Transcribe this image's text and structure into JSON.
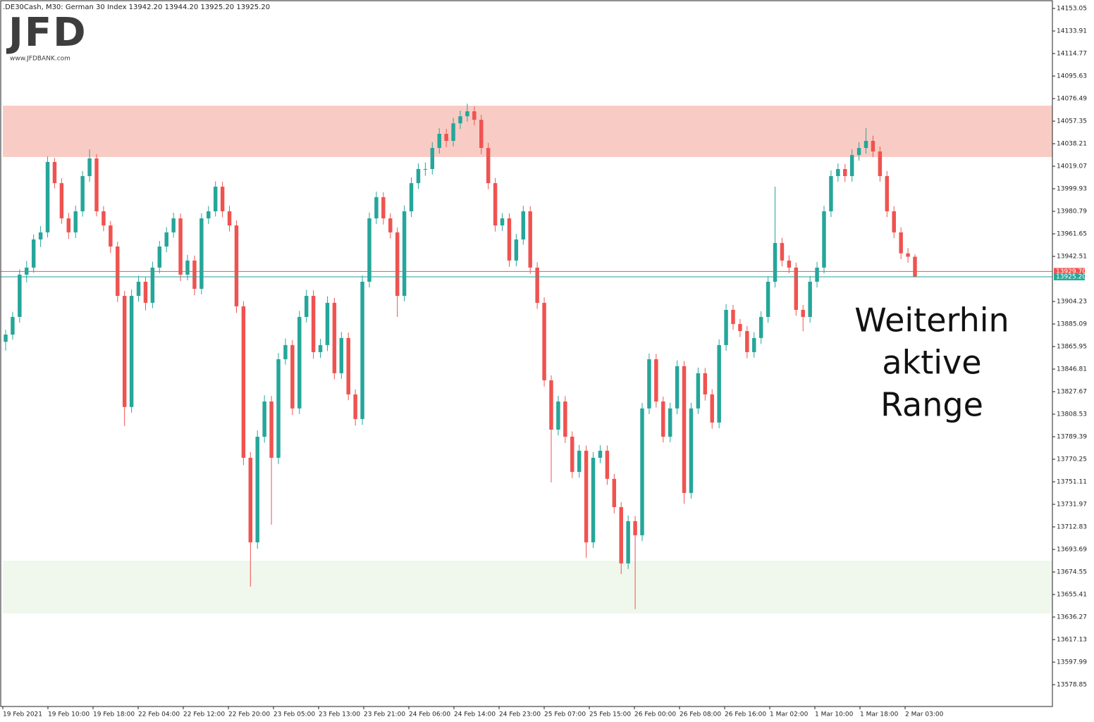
{
  "chart_data": {
    "type": "candlestick",
    "header": ".DE30Cash, M30:  German 30 Index  13942.20 13944.20 13925.20 13925.20",
    "logo": "JFD",
    "logo_url": "www.JFDBANK.com",
    "annotation": [
      "Weiterhin",
      "aktive",
      "Range"
    ],
    "up_color": "#26a69a",
    "down_color": "#ef5350",
    "ylim": [
      13560.3,
      14160.23
    ],
    "yticks": [
      14153.05,
      14133.91,
      14114.77,
      14095.63,
      14076.49,
      14057.35,
      14038.21,
      14019.07,
      13999.93,
      13980.79,
      13961.65,
      13942.51,
      13904.23,
      13885.09,
      13865.95,
      13846.81,
      13827.67,
      13808.53,
      13789.39,
      13770.25,
      13751.11,
      13731.97,
      13712.83,
      13693.69,
      13674.55,
      13655.41,
      13636.27,
      13617.13,
      13597.99,
      13578.85
    ],
    "x_labels": [
      "19 Feb 2021",
      "19 Feb 10:00",
      "19 Feb 18:00",
      "22 Feb 04:00",
      "22 Feb 12:00",
      "22 Feb 20:00",
      "23 Feb 05:00",
      "23 Feb 13:00",
      "23 Feb 21:00",
      "24 Feb 06:00",
      "24 Feb 14:00",
      "24 Feb 23:00",
      "25 Feb 07:00",
      "25 Feb 15:00",
      "26 Feb 00:00",
      "26 Feb 08:00",
      "26 Feb 16:00",
      "1 Mar 02:00",
      "1 Mar 10:00",
      "1 Mar 18:00",
      "2 Mar 03:00"
    ],
    "zones": [
      {
        "from": 14026.9,
        "to": 14070.5,
        "color": "#f8ccc4"
      },
      {
        "from": 13639.3,
        "to": 13684.1,
        "color": "#f0f7ec"
      }
    ],
    "price_lines": [
      {
        "value": 13929.7,
        "label": "13929.70",
        "color": "#ef5350"
      },
      {
        "value": 13925.2,
        "label": "13925.20",
        "color": "#26a69a"
      }
    ],
    "candles": [
      [
        13870.0,
        13880.2,
        13862.5,
        13876.1
      ],
      [
        13876.1,
        13895.4,
        13871.8,
        13891.1
      ],
      [
        13891.1,
        13931.5,
        13886.2,
        13927.0
      ],
      [
        13927.0,
        13938.6,
        13920.4,
        13933.0
      ],
      [
        13933.0,
        13961.2,
        13928.7,
        13956.9
      ],
      [
        13956.9,
        13968.3,
        13950.5,
        13962.9
      ],
      [
        13962.9,
        14027.4,
        13958.6,
        14022.7
      ],
      [
        14022.7,
        14026.1,
        14000.3,
        14004.7
      ],
      [
        14004.7,
        14008.9,
        13970.2,
        13974.8
      ],
      [
        13974.8,
        13979.5,
        13957.4,
        13962.9
      ],
      [
        13962.9,
        13985.6,
        13958.1,
        13980.8
      ],
      [
        13980.8,
        14014.9,
        13976.3,
        14010.7
      ],
      [
        14010.7,
        14033.4,
        14005.8,
        14025.7
      ],
      [
        14025.7,
        14029.3,
        13976.5,
        13980.8
      ],
      [
        13980.8,
        13985.2,
        13963.9,
        13968.8
      ],
      [
        13968.8,
        13972.6,
        13945.3,
        13950.9
      ],
      [
        13950.9,
        13955.0,
        13903.7,
        13909.0
      ],
      [
        13909.0,
        13913.2,
        13798.4,
        13814.6
      ],
      [
        13814.6,
        13914.3,
        13809.9,
        13909.0
      ],
      [
        13909.0,
        13926.1,
        13904.2,
        13921.0
      ],
      [
        13921.0,
        13925.4,
        13896.7,
        13903.1
      ],
      [
        13903.1,
        13938.1,
        13898.5,
        13933.0
      ],
      [
        13933.0,
        13955.7,
        13928.2,
        13950.9
      ],
      [
        13950.9,
        13967.3,
        13946.0,
        13962.9
      ],
      [
        13962.9,
        13979.6,
        13958.4,
        13974.8
      ],
      [
        13974.8,
        13978.9,
        13921.6,
        13927.0
      ],
      [
        13927.0,
        13943.8,
        13922.1,
        13939.0
      ],
      [
        13939.0,
        13943.2,
        13909.4,
        13915.0
      ],
      [
        13915.0,
        13979.1,
        13910.3,
        13974.8
      ],
      [
        13974.8,
        13985.3,
        13970.1,
        13980.8
      ],
      [
        13980.8,
        14006.2,
        13976.4,
        14001.7
      ],
      [
        14001.7,
        14005.9,
        13975.8,
        13980.8
      ],
      [
        13980.8,
        13985.4,
        13963.7,
        13968.8
      ],
      [
        13968.8,
        13973.0,
        13894.6,
        13900.1
      ],
      [
        13900.1,
        13904.5,
        13765.2,
        13771.5
      ],
      [
        13771.5,
        13776.3,
        13662.1,
        13699.7
      ],
      [
        13699.7,
        13794.8,
        13694.2,
        13789.4
      ],
      [
        13789.4,
        13824.6,
        13784.3,
        13819.3
      ],
      [
        13819.3,
        13823.9,
        13714.7,
        13771.5
      ],
      [
        13771.5,
        13860.4,
        13766.1,
        13855.2
      ],
      [
        13855.2,
        13872.8,
        13850.6,
        13867.2
      ],
      [
        13867.2,
        13871.5,
        13807.9,
        13813.4
      ],
      [
        13813.4,
        13896.2,
        13808.7,
        13891.1
      ],
      [
        13891.1,
        13914.1,
        13886.4,
        13909.0
      ],
      [
        13909.0,
        13913.7,
        13855.6,
        13861.2
      ],
      [
        13861.2,
        13872.5,
        13856.3,
        13867.2
      ],
      [
        13867.2,
        13908.6,
        13862.1,
        13903.1
      ],
      [
        13903.1,
        13907.2,
        13838.1,
        13843.3
      ],
      [
        13843.3,
        13878.4,
        13838.5,
        13873.2
      ],
      [
        13873.2,
        13877.8,
        13820.4,
        13825.3
      ],
      [
        13825.3,
        13829.6,
        13798.9,
        13804.4
      ],
      [
        13804.4,
        13926.3,
        13799.5,
        13921.0
      ],
      [
        13921.0,
        13979.7,
        13916.2,
        13974.8
      ],
      [
        13974.8,
        13997.5,
        13970.1,
        13992.8
      ],
      [
        13992.8,
        13996.9,
        13969.6,
        13974.8
      ],
      [
        13974.8,
        13979.2,
        13957.8,
        13962.9
      ],
      [
        13962.9,
        13967.1,
        13891.1,
        13909.0
      ],
      [
        13909.0,
        13985.7,
        13904.3,
        13980.8
      ],
      [
        13980.8,
        14009.6,
        13976.0,
        14004.7
      ],
      [
        14004.7,
        14021.5,
        13999.8,
        14016.7
      ],
      [
        14016.7,
        14022.3,
        14010.9,
        14016.7
      ],
      [
        14016.7,
        14039.4,
        14012.0,
        14034.6
      ],
      [
        14034.6,
        14051.3,
        14029.8,
        14046.6
      ],
      [
        14046.6,
        14050.8,
        14035.4,
        14040.6
      ],
      [
        14040.6,
        14060.2,
        14035.9,
        14055.5
      ],
      [
        14055.5,
        14066.3,
        14050.7,
        14061.5
      ],
      [
        14061.5,
        14072.3,
        14057.0,
        14065.7
      ],
      [
        14065.7,
        14069.8,
        14053.9,
        14058.5
      ],
      [
        14058.5,
        14062.7,
        14029.4,
        14034.6
      ],
      [
        14034.6,
        14038.9,
        13999.5,
        14004.7
      ],
      [
        14004.7,
        14009.1,
        13963.6,
        13968.8
      ],
      [
        13968.8,
        13979.3,
        13964.1,
        13974.8
      ],
      [
        13974.8,
        13979.0,
        13933.7,
        13939.0
      ],
      [
        13939.0,
        13961.6,
        13934.2,
        13956.9
      ],
      [
        13956.9,
        13985.5,
        13952.4,
        13980.8
      ],
      [
        13980.8,
        13985.1,
        13927.8,
        13933.0
      ],
      [
        13933.0,
        13937.6,
        13897.9,
        13903.1
      ],
      [
        13903.1,
        13907.7,
        13832.0,
        13837.3
      ],
      [
        13837.3,
        13841.5,
        13750.6,
        13795.4
      ],
      [
        13795.4,
        13824.2,
        13790.5,
        13819.3
      ],
      [
        13819.3,
        13823.8,
        13784.1,
        13789.4
      ],
      [
        13789.4,
        13793.9,
        13754.3,
        13759.5
      ],
      [
        13759.5,
        13782.4,
        13754.6,
        13777.5
      ],
      [
        13777.5,
        13781.8,
        13686.6,
        13699.7
      ],
      [
        13699.7,
        13776.3,
        13694.8,
        13771.5
      ],
      [
        13771.5,
        13782.2,
        13766.9,
        13777.5
      ],
      [
        13777.5,
        13781.9,
        13748.5,
        13753.6
      ],
      [
        13753.6,
        13757.8,
        13724.3,
        13729.6
      ],
      [
        13729.6,
        13733.9,
        13672.8,
        13681.8
      ],
      [
        13681.8,
        13722.5,
        13677.0,
        13717.7
      ],
      [
        13717.7,
        13722.0,
        13643.0,
        13705.7
      ],
      [
        13705.7,
        13818.1,
        13700.8,
        13813.4
      ],
      [
        13813.4,
        13860.1,
        13808.6,
        13855.2
      ],
      [
        13855.2,
        13859.6,
        13814.1,
        13819.3
      ],
      [
        13819.3,
        13823.5,
        13784.5,
        13789.4
      ],
      [
        13789.4,
        13818.3,
        13784.7,
        13813.4
      ],
      [
        13813.4,
        13854.2,
        13808.5,
        13849.3
      ],
      [
        13849.3,
        13853.7,
        13732.6,
        13741.6
      ],
      [
        13741.6,
        13818.2,
        13736.8,
        13813.4
      ],
      [
        13813.4,
        13848.1,
        13808.7,
        13843.3
      ],
      [
        13843.3,
        13847.8,
        13820.1,
        13825.3
      ],
      [
        13825.3,
        13829.7,
        13796.2,
        13801.4
      ],
      [
        13801.4,
        13872.0,
        13796.6,
        13867.2
      ],
      [
        13867.2,
        13902.0,
        13862.4,
        13897.1
      ],
      [
        13897.1,
        13901.3,
        13880.2,
        13885.1
      ],
      [
        13885.1,
        13889.4,
        13874.0,
        13879.1
      ],
      [
        13879.1,
        13883.6,
        13856.0,
        13861.2
      ],
      [
        13861.2,
        13878.1,
        13856.5,
        13873.2
      ],
      [
        13873.2,
        13896.0,
        13868.3,
        13891.1
      ],
      [
        13891.1,
        13925.8,
        13886.2,
        13921.0
      ],
      [
        13921.0,
        14001.7,
        13916.1,
        13953.9
      ],
      [
        13953.9,
        13958.3,
        13934.1,
        13939.0
      ],
      [
        13939.0,
        13943.4,
        13928.2,
        13933.0
      ],
      [
        13933.0,
        13937.2,
        13892.1,
        13897.1
      ],
      [
        13897.1,
        13901.4,
        13879.0,
        13891.1
      ],
      [
        13891.1,
        13925.9,
        13886.3,
        13921.0
      ],
      [
        13921.0,
        13937.8,
        13916.1,
        13933.0
      ],
      [
        13933.0,
        13985.5,
        13928.1,
        13980.8
      ],
      [
        13980.8,
        14015.4,
        13975.9,
        14010.7
      ],
      [
        14010.7,
        14021.5,
        14005.9,
        14016.7
      ],
      [
        14016.7,
        14020.9,
        14005.8,
        14010.7
      ],
      [
        14010.7,
        14033.3,
        14005.9,
        14028.6
      ],
      [
        14028.6,
        14039.4,
        14023.7,
        14034.6
      ],
      [
        14034.6,
        14051.4,
        14029.7,
        14040.6
      ],
      [
        14040.6,
        14045.0,
        14026.8,
        14031.6
      ],
      [
        14031.6,
        14035.9,
        14005.9,
        14010.7
      ],
      [
        14010.7,
        14015.0,
        13975.9,
        13980.8
      ],
      [
        13980.8,
        13985.2,
        13958.1,
        13962.9
      ],
      [
        13962.9,
        13967.2,
        13940.2,
        13945.1
      ],
      [
        13945.1,
        13949.6,
        13937.1,
        13942.2
      ],
      [
        13942.2,
        13944.2,
        13925.2,
        13925.2
      ]
    ]
  }
}
